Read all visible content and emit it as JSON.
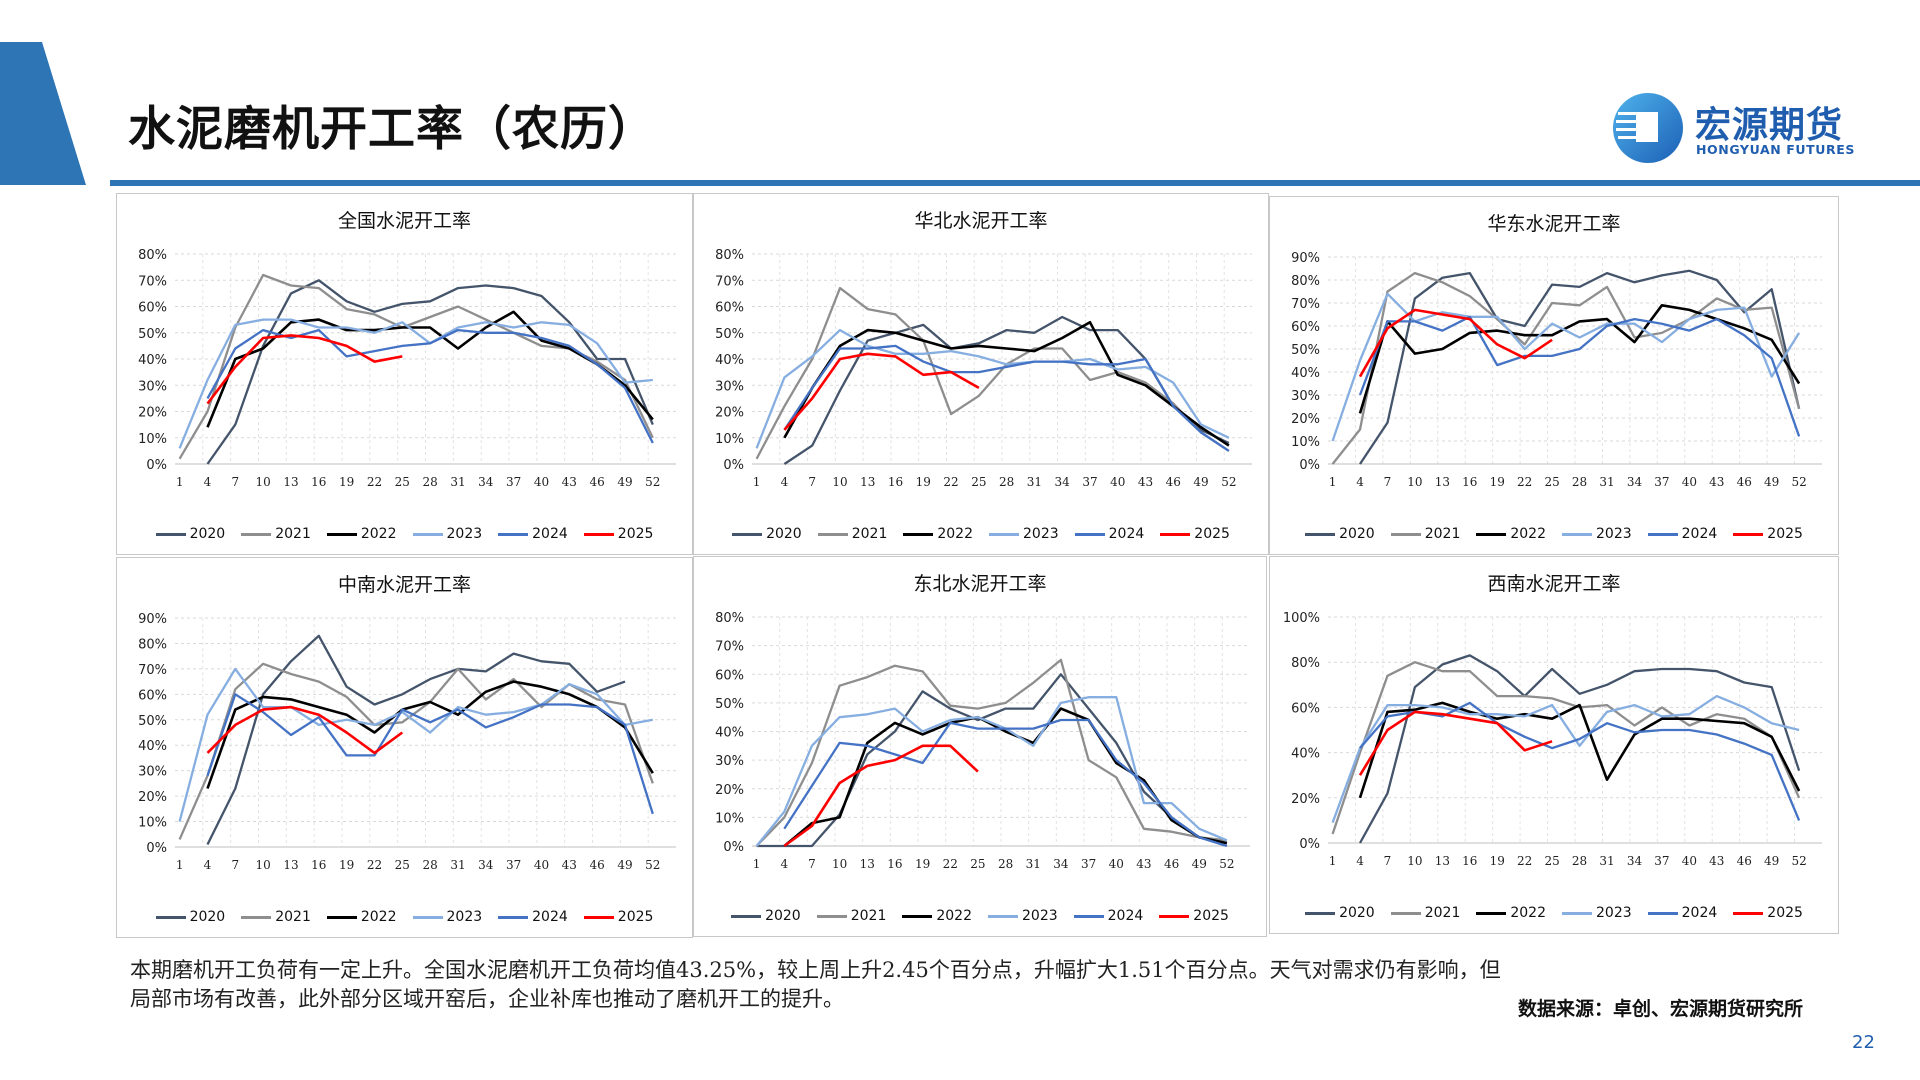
{
  "header": {
    "title": "水泥磨机开工率（农历）"
  },
  "logo": {
    "cn": "宏源期货",
    "en": "HONGYUAN FUTURES"
  },
  "colors": {
    "accent": "#2E75B6",
    "brand": "#1F5DAF"
  },
  "summary": "本期磨机开工负荷有一定上升。全国水泥磨机开工负荷均值43.25%，较上周上升2.45个百分点，升幅扩大1.51个百分点。天气对需求仍有影响，但局部市场有改善，此外部分区域开窑后，企业补库也推动了磨机开工的提升。",
  "source": "数据来源：卓创、宏源期货研究所",
  "page_number": "22",
  "series_colors": {
    "2020": "#44546A",
    "2021": "#8E8E8E",
    "2022": "#000000",
    "2023": "#86AEE0",
    "2024": "#4472C4",
    "2025": "#FF0000"
  },
  "chart_data": [
    {
      "type": "line",
      "title": "全国水泥开工率",
      "ylim": [
        0,
        80
      ],
      "ystep": 10,
      "yunit": "%",
      "x": [
        1,
        4,
        7,
        10,
        13,
        16,
        19,
        22,
        25,
        28,
        31,
        34,
        37,
        40,
        43,
        46,
        49,
        52
      ],
      "xticks": [
        1,
        4,
        7,
        10,
        13,
        16,
        19,
        22,
        25,
        28,
        31,
        34,
        37,
        40,
        43,
        46,
        49,
        52
      ],
      "legend": "bottom",
      "grid": true,
      "series": [
        {
          "name": "2020",
          "values": [
            null,
            0,
            15,
            45,
            65,
            70,
            62,
            58,
            61,
            62,
            67,
            68,
            67,
            64,
            54,
            40,
            40,
            15
          ]
        },
        {
          "name": "2021",
          "values": [
            2,
            20,
            52,
            72,
            68,
            67,
            59,
            57,
            52,
            56,
            60,
            55,
            50,
            45,
            44,
            39,
            32,
            10
          ]
        },
        {
          "name": "2022",
          "values": [
            null,
            14,
            40,
            44,
            54,
            55,
            51,
            51,
            52,
            52,
            44,
            52,
            58,
            47,
            44,
            38,
            30,
            17
          ]
        },
        {
          "name": "2023",
          "values": [
            6,
            32,
            53,
            55,
            55,
            52,
            52,
            50,
            54,
            46,
            52,
            54,
            52,
            54,
            53,
            46,
            31,
            32
          ]
        },
        {
          "name": "2024",
          "values": [
            null,
            25,
            44,
            51,
            48,
            51,
            41,
            43,
            45,
            46,
            51,
            50,
            50,
            48,
            45,
            38,
            29,
            8
          ]
        },
        {
          "name": "2025",
          "values": [
            null,
            23,
            37,
            48,
            49,
            48,
            45,
            39,
            41,
            null,
            null,
            null,
            null,
            null,
            null,
            null,
            null,
            null
          ]
        }
      ]
    },
    {
      "type": "line",
      "title": "华北水泥开工率",
      "ylim": [
        0,
        80
      ],
      "ystep": 10,
      "yunit": "%",
      "x": [
        1,
        4,
        7,
        10,
        13,
        16,
        19,
        22,
        25,
        28,
        31,
        34,
        37,
        40,
        43,
        46,
        49,
        52
      ],
      "xticks": [
        1,
        4,
        7,
        10,
        13,
        16,
        19,
        22,
        25,
        28,
        31,
        34,
        37,
        40,
        43,
        46,
        49,
        52
      ],
      "legend": "bottom",
      "grid": true,
      "series": [
        {
          "name": "2020",
          "values": [
            null,
            0,
            7,
            28,
            47,
            50,
            53,
            44,
            46,
            51,
            50,
            56,
            51,
            51,
            40,
            22,
            13,
            8
          ]
        },
        {
          "name": "2021",
          "values": [
            2,
            22,
            40,
            67,
            59,
            57,
            47,
            19,
            26,
            38,
            44,
            44,
            32,
            35,
            31,
            23,
            12,
            5
          ]
        },
        {
          "name": "2022",
          "values": [
            null,
            10,
            29,
            45,
            51,
            50,
            47,
            44,
            45,
            44,
            43,
            48,
            54,
            34,
            30,
            22,
            14,
            7
          ]
        },
        {
          "name": "2023",
          "values": [
            6,
            33,
            41,
            51,
            45,
            42,
            42,
            43,
            41,
            38,
            39,
            39,
            40,
            36,
            37,
            31,
            15,
            10
          ]
        },
        {
          "name": "2024",
          "values": [
            null,
            13,
            29,
            44,
            44,
            45,
            39,
            35,
            35,
            37,
            39,
            39,
            38,
            38,
            40,
            22,
            12,
            5
          ]
        },
        {
          "name": "2025",
          "values": [
            null,
            13,
            25,
            40,
            42,
            41,
            34,
            35,
            29,
            null,
            null,
            null,
            null,
            null,
            null,
            null,
            null,
            null
          ]
        }
      ]
    },
    {
      "type": "line",
      "title": "华东水泥开工率",
      "ylim": [
        0,
        90
      ],
      "ystep": 10,
      "yunit": "%",
      "x": [
        1,
        4,
        7,
        10,
        13,
        16,
        19,
        22,
        25,
        28,
        31,
        34,
        37,
        40,
        43,
        46,
        49,
        52
      ],
      "xticks": [
        1,
        4,
        7,
        10,
        13,
        16,
        19,
        22,
        25,
        28,
        31,
        34,
        37,
        40,
        43,
        46,
        49,
        52
      ],
      "legend": "bottom",
      "grid": true,
      "series": [
        {
          "name": "2020",
          "values": [
            null,
            0,
            18,
            72,
            81,
            83,
            63,
            60,
            78,
            77,
            83,
            79,
            82,
            84,
            80,
            66,
            76,
            24
          ]
        },
        {
          "name": "2021",
          "values": [
            0,
            15,
            75,
            83,
            79,
            73,
            63,
            52,
            70,
            69,
            77,
            55,
            57,
            63,
            72,
            67,
            68,
            24
          ]
        },
        {
          "name": "2022",
          "values": [
            null,
            22,
            62,
            48,
            50,
            57,
            58,
            56,
            56,
            62,
            63,
            53,
            69,
            67,
            63,
            59,
            54,
            35
          ]
        },
        {
          "name": "2023",
          "values": [
            10,
            45,
            74,
            62,
            66,
            64,
            64,
            50,
            61,
            55,
            61,
            61,
            53,
            63,
            67,
            68,
            38,
            57
          ]
        },
        {
          "name": "2024",
          "values": [
            null,
            30,
            62,
            62,
            58,
            64,
            43,
            47,
            47,
            50,
            60,
            63,
            61,
            58,
            63,
            56,
            46,
            12
          ]
        },
        {
          "name": "2025",
          "values": [
            null,
            38,
            59,
            67,
            65,
            63,
            52,
            46,
            54,
            null,
            null,
            null,
            null,
            null,
            null,
            null,
            null,
            null
          ]
        }
      ]
    },
    {
      "type": "line",
      "title": "中南水泥开工率",
      "ylim": [
        0,
        90
      ],
      "ystep": 10,
      "yunit": "%",
      "x": [
        1,
        4,
        7,
        10,
        13,
        16,
        19,
        22,
        25,
        28,
        31,
        34,
        37,
        40,
        43,
        46,
        49,
        52
      ],
      "xticks": [
        1,
        4,
        7,
        10,
        13,
        16,
        19,
        22,
        25,
        28,
        31,
        34,
        37,
        40,
        43,
        46,
        49,
        52
      ],
      "legend": "bottom",
      "grid": true,
      "series": [
        {
          "name": "2020",
          "values": [
            null,
            1,
            23,
            60,
            73,
            83,
            63,
            56,
            60,
            66,
            70,
            69,
            76,
            73,
            72,
            61,
            65,
            null
          ]
        },
        {
          "name": "2021",
          "values": [
            3,
            28,
            62,
            72,
            68,
            65,
            59,
            48,
            49,
            57,
            70,
            58,
            66,
            55,
            64,
            58,
            56,
            25
          ]
        },
        {
          "name": "2022",
          "values": [
            null,
            23,
            54,
            59,
            58,
            55,
            52,
            45,
            54,
            57,
            52,
            61,
            65,
            63,
            60,
            55,
            47,
            29
          ]
        },
        {
          "name": "2023",
          "values": [
            10,
            52,
            70,
            55,
            55,
            48,
            50,
            48,
            53,
            45,
            55,
            52,
            53,
            56,
            64,
            60,
            48,
            50
          ]
        },
        {
          "name": "2024",
          "values": [
            null,
            28,
            60,
            53,
            44,
            51,
            36,
            36,
            54,
            49,
            54,
            47,
            51,
            56,
            56,
            55,
            48,
            13
          ]
        },
        {
          "name": "2025",
          "values": [
            null,
            37,
            48,
            54,
            55,
            52,
            45,
            37,
            45,
            null,
            null,
            null,
            null,
            null,
            null,
            null,
            null,
            null
          ]
        }
      ]
    },
    {
      "type": "line",
      "title": "东北水泥开工率",
      "ylim": [
        0,
        80
      ],
      "ystep": 10,
      "yunit": "%",
      "x": [
        1,
        4,
        7,
        10,
        13,
        16,
        19,
        22,
        25,
        28,
        31,
        34,
        37,
        40,
        43,
        46,
        49,
        52
      ],
      "xticks": [
        1,
        4,
        7,
        10,
        13,
        16,
        19,
        22,
        25,
        28,
        31,
        34,
        37,
        40,
        43,
        46,
        49,
        52
      ],
      "legend": "bottom",
      "grid": true,
      "series": [
        {
          "name": "2020",
          "values": [
            0,
            0,
            0,
            11,
            32,
            40,
            54,
            48,
            44,
            48,
            48,
            60,
            48,
            36,
            19,
            10,
            3,
            1
          ]
        },
        {
          "name": "2021",
          "values": [
            0,
            10,
            29,
            56,
            59,
            63,
            61,
            49,
            48,
            50,
            57,
            65,
            30,
            24,
            6,
            5,
            3,
            2
          ]
        },
        {
          "name": "2022",
          "values": [
            null,
            0,
            8,
            10,
            36,
            43,
            39,
            43,
            45,
            40,
            36,
            48,
            44,
            29,
            23,
            9,
            3,
            1
          ]
        },
        {
          "name": "2023",
          "values": [
            0,
            12,
            35,
            45,
            46,
            48,
            40,
            44,
            45,
            41,
            35,
            50,
            52,
            52,
            15,
            15,
            6,
            2
          ]
        },
        {
          "name": "2024",
          "values": [
            null,
            6,
            21,
            36,
            35,
            32,
            29,
            43,
            41,
            41,
            41,
            44,
            44,
            30,
            22,
            10,
            3,
            0
          ]
        },
        {
          "name": "2025",
          "values": [
            null,
            0,
            7,
            22,
            28,
            30,
            35,
            35,
            26,
            null,
            null,
            null,
            null,
            null,
            null,
            null,
            null,
            null
          ]
        }
      ]
    },
    {
      "type": "line",
      "title": "西南水泥开工率",
      "ylim": [
        0,
        100
      ],
      "ystep": 20,
      "yunit": "%",
      "x": [
        1,
        4,
        7,
        10,
        13,
        16,
        19,
        22,
        25,
        28,
        31,
        34,
        37,
        40,
        43,
        46,
        49,
        52
      ],
      "xticks": [
        1,
        4,
        7,
        10,
        13,
        16,
        19,
        22,
        25,
        28,
        31,
        34,
        37,
        40,
        43,
        46,
        49,
        52
      ],
      "legend": "bottom",
      "grid": true,
      "series": [
        {
          "name": "2020",
          "values": [
            null,
            0,
            22,
            69,
            79,
            83,
            76,
            65,
            77,
            66,
            70,
            76,
            77,
            77,
            76,
            71,
            69,
            32
          ]
        },
        {
          "name": "2021",
          "values": [
            4,
            40,
            74,
            80,
            76,
            76,
            65,
            65,
            64,
            60,
            61,
            52,
            60,
            52,
            57,
            55,
            47,
            20
          ]
        },
        {
          "name": "2022",
          "values": [
            null,
            20,
            58,
            59,
            62,
            58,
            55,
            57,
            55,
            61,
            28,
            48,
            55,
            55,
            54,
            53,
            47,
            23
          ]
        },
        {
          "name": "2023",
          "values": [
            9,
            42,
            61,
            61,
            60,
            57,
            57,
            56,
            61,
            43,
            58,
            61,
            56,
            57,
            65,
            60,
            53,
            50
          ]
        },
        {
          "name": "2024",
          "values": [
            null,
            42,
            56,
            58,
            56,
            62,
            53,
            47,
            42,
            46,
            53,
            49,
            50,
            50,
            48,
            44,
            39,
            10
          ]
        },
        {
          "name": "2025",
          "values": [
            null,
            30,
            50,
            58,
            57,
            55,
            53,
            41,
            45,
            null,
            null,
            null,
            null,
            null,
            null,
            null,
            null,
            null
          ]
        }
      ]
    }
  ]
}
